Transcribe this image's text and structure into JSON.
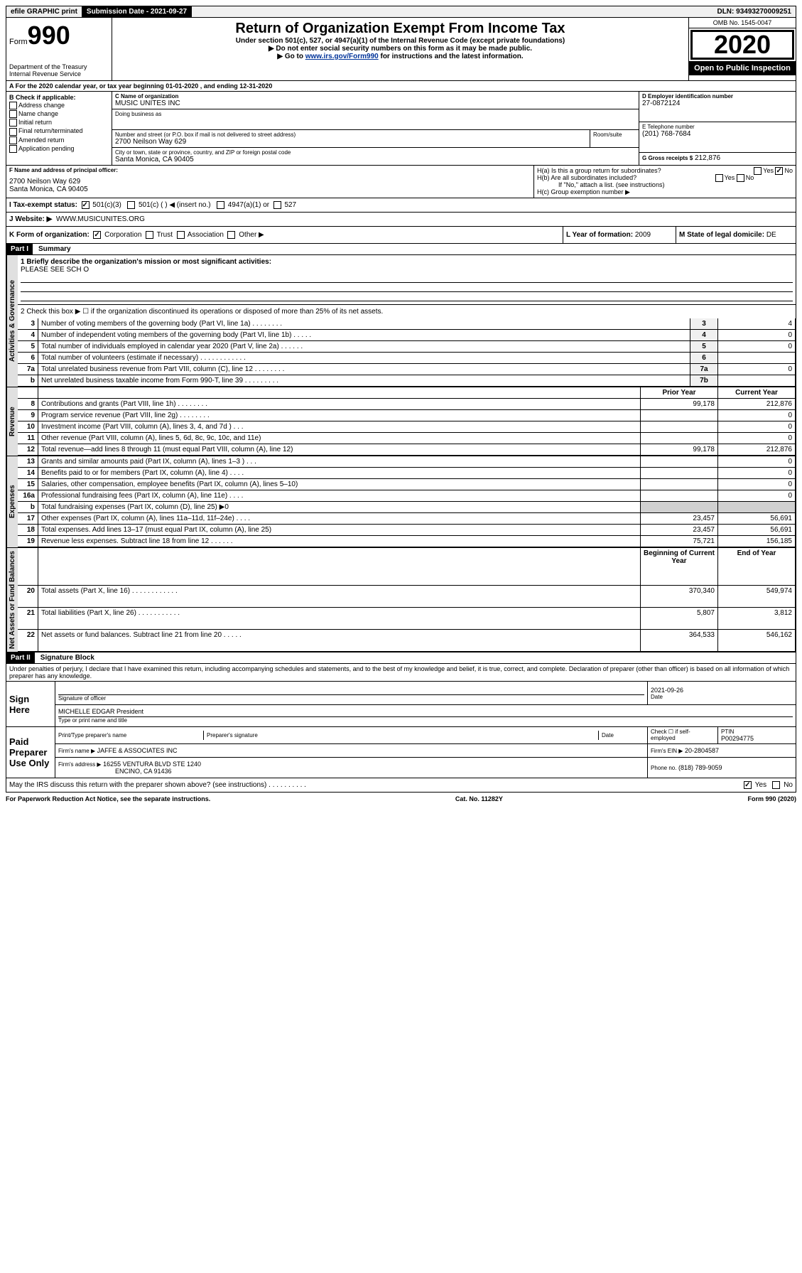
{
  "topbar": {
    "efile": "efile GRAPHIC print",
    "subdate_label": "Submission Date - 2021-09-27",
    "dln": "DLN: 93493270009251"
  },
  "header": {
    "form_label": "Form",
    "form_num": "990",
    "dept": "Department of the Treasury",
    "irs": "Internal Revenue Service",
    "title": "Return of Organization Exempt From Income Tax",
    "subtitle": "Under section 501(c), 527, or 4947(a)(1) of the Internal Revenue Code (except private foundations)",
    "note1": "▶ Do not enter social security numbers on this form as it may be made public.",
    "note2_pre": "▶ Go to ",
    "note2_link": "www.irs.gov/Form990",
    "note2_post": " for instructions and the latest information.",
    "omb": "OMB No. 1545-0047",
    "year": "2020",
    "open": "Open to Public Inspection"
  },
  "line_a": "A For the 2020 calendar year, or tax year beginning 01-01-2020   , and ending 12-31-2020",
  "box_b": {
    "title": "B Check if applicable:",
    "items": [
      "Address change",
      "Name change",
      "Initial return",
      "Final return/terminated",
      "Amended return",
      "Application pending"
    ]
  },
  "box_c": {
    "name_label": "C Name of organization",
    "name": "MUSIC UNITES INC",
    "dba_label": "Doing business as",
    "addr_label": "Number and street (or P.O. box if mail is not delivered to street address)",
    "room_label": "Room/suite",
    "addr": "2700 Neilson Way 629",
    "city_label": "City or town, state or province, country, and ZIP or foreign postal code",
    "city": "Santa Monica, CA  90405"
  },
  "box_d": {
    "label": "D Employer identification number",
    "value": "27-0872124"
  },
  "box_e": {
    "label": "E Telephone number",
    "value": "(201) 768-7684"
  },
  "box_g": {
    "label": "G Gross receipts $",
    "value": "212,876"
  },
  "box_f": {
    "label": "F Name and address of principal officer:",
    "line1": "2700 Neilson Way 629",
    "line2": "Santa Monica, CA  90405"
  },
  "box_h": {
    "ha": "H(a)  Is this a group return for subordinates?",
    "hb": "H(b)  Are all subordinates included?",
    "hb_note": "If \"No,\" attach a list. (see instructions)",
    "hc": "H(c)  Group exemption number ▶"
  },
  "box_i": {
    "label": "I   Tax-exempt status:",
    "opts": [
      "501(c)(3)",
      "501(c) (   ) ◀ (insert no.)",
      "4947(a)(1) or",
      "527"
    ]
  },
  "box_j": {
    "label": "J   Website: ▶",
    "value": "WWW.MUSICUNITES.ORG"
  },
  "box_k": {
    "label": "K Form of organization:",
    "opts": [
      "Corporation",
      "Trust",
      "Association",
      "Other ▶"
    ]
  },
  "box_l": {
    "label": "L Year of formation:",
    "value": "2009"
  },
  "box_m": {
    "label": "M State of legal domicile:",
    "value": "DE"
  },
  "part1": {
    "header": "Part I",
    "title": "Summary",
    "line1_label": "1  Briefly describe the organization's mission or most significant activities:",
    "line1_value": "PLEASE SEE SCH O",
    "line2": "2   Check this box ▶ ☐  if the organization discontinued its operations or disposed of more than 25% of its net assets.",
    "rows_top": [
      {
        "n": "3",
        "t": "Number of voting members of the governing body (Part VI, line 1a)  .    .    .    .    .    .    .    .",
        "ln": "3",
        "v": "4"
      },
      {
        "n": "4",
        "t": "Number of independent voting members of the governing body (Part VI, line 1b)   .    .    .    .    .",
        "ln": "4",
        "v": "0"
      },
      {
        "n": "5",
        "t": "Total number of individuals employed in calendar year 2020 (Part V, line 2a)   .    .    .    .    .    .",
        "ln": "5",
        "v": "0"
      },
      {
        "n": "6",
        "t": "Total number of volunteers (estimate if necessary)   .    .    .    .    .    .    .    .    .    .    .    .",
        "ln": "6",
        "v": ""
      },
      {
        "n": "7a",
        "t": "Total unrelated business revenue from Part VIII, column (C), line 12   .    .    .    .    .    .    .    .",
        "ln": "7a",
        "v": "0"
      },
      {
        "n": "b",
        "t": "Net unrelated business taxable income from Form 990-T, line 39   .    .    .    .    .    .    .    .    .",
        "ln": "7b",
        "v": ""
      }
    ],
    "col_headers": {
      "prior": "Prior Year",
      "current": "Current Year"
    },
    "revenue_rows": [
      {
        "n": "8",
        "t": "Contributions and grants (Part VIII, line 1h)   .    .    .    .    .    .    .    .",
        "p": "99,178",
        "c": "212,876"
      },
      {
        "n": "9",
        "t": "Program service revenue (Part VIII, line 2g)   .    .    .    .    .    .    .    .",
        "p": "",
        "c": "0"
      },
      {
        "n": "10",
        "t": "Investment income (Part VIII, column (A), lines 3, 4, and 7d )    .    .    .",
        "p": "",
        "c": "0"
      },
      {
        "n": "11",
        "t": "Other revenue (Part VIII, column (A), lines 5, 6d, 8c, 9c, 10c, and 11e)",
        "p": "",
        "c": "0"
      },
      {
        "n": "12",
        "t": "Total revenue—add lines 8 through 11 (must equal Part VIII, column (A), line 12)",
        "p": "99,178",
        "c": "212,876"
      }
    ],
    "expense_rows": [
      {
        "n": "13",
        "t": "Grants and similar amounts paid (Part IX, column (A), lines 1–3 )   .    .    .",
        "p": "",
        "c": "0"
      },
      {
        "n": "14",
        "t": "Benefits paid to or for members (Part IX, column (A), line 4)   .    .    .    .",
        "p": "",
        "c": "0"
      },
      {
        "n": "15",
        "t": "Salaries, other compensation, employee benefits (Part IX, column (A), lines 5–10)",
        "p": "",
        "c": "0"
      },
      {
        "n": "16a",
        "t": "Professional fundraising fees (Part IX, column (A), line 11e)   .    .    .    .",
        "p": "",
        "c": "0"
      },
      {
        "n": "b",
        "t": "Total fundraising expenses (Part IX, column (D), line 25) ▶0",
        "p": "shaded",
        "c": "shaded"
      },
      {
        "n": "17",
        "t": "Other expenses (Part IX, column (A), lines 11a–11d, 11f–24e)   .    .    .    .",
        "p": "23,457",
        "c": "56,691"
      },
      {
        "n": "18",
        "t": "Total expenses. Add lines 13–17 (must equal Part IX, column (A), line 25)",
        "p": "23,457",
        "c": "56,691"
      },
      {
        "n": "19",
        "t": "Revenue less expenses. Subtract line 18 from line 12   .    .    .    .    .    .",
        "p": "75,721",
        "c": "156,185"
      }
    ],
    "net_headers": {
      "begin": "Beginning of Current Year",
      "end": "End of Year"
    },
    "net_rows": [
      {
        "n": "20",
        "t": "Total assets (Part X, line 16)   .    .    .    .    .    .    .    .    .    .    .    .",
        "p": "370,340",
        "c": "549,974"
      },
      {
        "n": "21",
        "t": "Total liabilities (Part X, line 26)   .    .    .    .    .    .    .    .    .    .    .",
        "p": "5,807",
        "c": "3,812"
      },
      {
        "n": "22",
        "t": "Net assets or fund balances. Subtract line 21 from line 20   .    .    .    .    .",
        "p": "364,533",
        "c": "546,162"
      }
    ]
  },
  "part2": {
    "header": "Part II",
    "title": "Signature Block",
    "perjury": "Under penalties of perjury, I declare that I have examined this return, including accompanying schedules and statements, and to the best of my knowledge and belief, it is true, correct, and complete. Declaration of preparer (other than officer) is based on all information of which preparer has any knowledge.",
    "sign_here": "Sign Here",
    "sig_date": "2021-09-26",
    "sig_officer_label": "Signature of officer",
    "date_label": "Date",
    "officer_name": "MICHELLE EDGAR  President",
    "type_name_label": "Type or print name and title",
    "paid": "Paid Preparer Use Only",
    "prep_name_label": "Print/Type preparer's name",
    "prep_sig_label": "Preparer's signature",
    "prep_date_label": "Date",
    "check_if": "Check ☐ if self-employed",
    "ptin_label": "PTIN",
    "ptin": "P00294775",
    "firm_name_label": "Firm's name     ▶",
    "firm_name": "JAFFE & ASSOCIATES INC",
    "firm_ein_label": "Firm's EIN ▶",
    "firm_ein": "20-2804587",
    "firm_addr_label": "Firm's address ▶",
    "firm_addr1": "16255 VENTURA BLVD STE 1240",
    "firm_addr2": "ENCINO, CA  91436",
    "phone_label": "Phone no.",
    "phone": "(818) 789-9059",
    "discuss": "May the IRS discuss this return with the preparer shown above? (see instructions)    .    .    .    .    .    .    .    .    .    .",
    "yes": "Yes",
    "no": "No"
  },
  "footer": {
    "paperwork": "For Paperwork Reduction Act Notice, see the separate instructions.",
    "cat": "Cat. No. 11282Y",
    "form": "Form 990 (2020)"
  },
  "vtabs": {
    "gov": "Activities & Governance",
    "rev": "Revenue",
    "exp": "Expenses",
    "net": "Net Assets or Fund Balances"
  }
}
